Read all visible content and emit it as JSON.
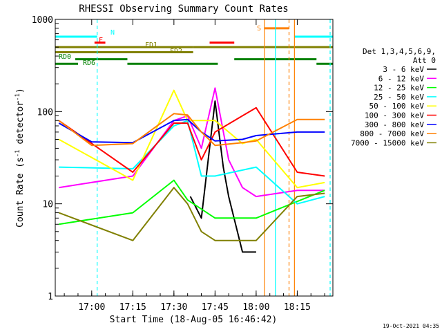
{
  "chart_data": {
    "type": "line",
    "title": "RHESSI Observing Summary Count Rates",
    "xlabel": "Start Time (18-Aug-05 16:46:42)",
    "ylabel": "Count Rate (s",
    "ylabel_sup1": "-1",
    "ylabel_mid": " detector",
    "ylabel_sup2": "-1",
    "ylabel_end": ")",
    "xlim": [
      16.7783,
      18.4667
    ],
    "ylim": [
      1,
      1000
    ],
    "yscale": "log",
    "x_ticks": [
      {
        "t": 17.0,
        "label": "17:00"
      },
      {
        "t": 17.25,
        "label": "17:15"
      },
      {
        "t": 17.5,
        "label": "17:30"
      },
      {
        "t": 17.75,
        "label": "17:45"
      },
      {
        "t": 18.0,
        "label": "18:00"
      },
      {
        "t": 18.25,
        "label": "18:15"
      }
    ],
    "y_ticks": [
      {
        "v": 1,
        "label": "1"
      },
      {
        "v": 10,
        "label": "10"
      },
      {
        "v": 100,
        "label": "100"
      },
      {
        "v": 1000,
        "label": "1000"
      }
    ],
    "legend_header": [
      "Det 1,3,4,5,6,9,",
      "Att 0"
    ],
    "timestamp": "19-Oct-2021 04:35",
    "series": [
      {
        "name": "3 - 6 keV",
        "color": "#000000",
        "points": [
          [
            17.6,
            12
          ],
          [
            17.667,
            7
          ],
          [
            17.75,
            130
          ],
          [
            17.8,
            25
          ],
          [
            17.833,
            12
          ],
          [
            17.917,
            3
          ],
          [
            18.0,
            3
          ]
        ]
      },
      {
        "name": "6 - 12 keV",
        "color": "#ff00ff",
        "points": [
          [
            16.8,
            15
          ],
          [
            17.25,
            20
          ],
          [
            17.5,
            80
          ],
          [
            17.583,
            90
          ],
          [
            17.667,
            40
          ],
          [
            17.75,
            180
          ],
          [
            17.833,
            30
          ],
          [
            17.917,
            15
          ],
          [
            18.0,
            12
          ],
          [
            18.25,
            14
          ],
          [
            18.417,
            14
          ]
        ]
      },
      {
        "name": "12 - 25 keV",
        "color": "#00ff00",
        "points": [
          [
            16.8,
            6
          ],
          [
            17.25,
            8
          ],
          [
            17.5,
            18
          ],
          [
            17.583,
            11
          ],
          [
            17.75,
            7
          ],
          [
            18.0,
            7
          ],
          [
            18.417,
            14
          ]
        ]
      },
      {
        "name": "25 - 50 keV",
        "color": "#00ffff",
        "points": [
          [
            16.8,
            25
          ],
          [
            17.25,
            24
          ],
          [
            17.5,
            70
          ],
          [
            17.583,
            80
          ],
          [
            17.667,
            20
          ],
          [
            17.75,
            20
          ],
          [
            18.0,
            25
          ],
          [
            18.25,
            10
          ],
          [
            18.417,
            12
          ]
        ]
      },
      {
        "name": "50 - 100 keV",
        "color": "#ffff00",
        "points": [
          [
            16.8,
            50
          ],
          [
            17.25,
            18
          ],
          [
            17.5,
            170
          ],
          [
            17.583,
            80
          ],
          [
            17.667,
            80
          ],
          [
            17.75,
            80
          ],
          [
            17.917,
            45
          ],
          [
            18.0,
            50
          ],
          [
            18.25,
            15
          ],
          [
            18.417,
            17
          ]
        ]
      },
      {
        "name": "100 - 300 keV",
        "color": "#ff0000",
        "points": [
          [
            16.8,
            80
          ],
          [
            17.25,
            22
          ],
          [
            17.5,
            75
          ],
          [
            17.583,
            75
          ],
          [
            17.667,
            30
          ],
          [
            17.75,
            60
          ],
          [
            17.917,
            90
          ],
          [
            18.0,
            110
          ],
          [
            18.25,
            22
          ],
          [
            18.417,
            20
          ]
        ]
      },
      {
        "name": "300 - 800 keV",
        "color": "#0000ff",
        "points": [
          [
            16.8,
            75
          ],
          [
            17.0,
            47
          ],
          [
            17.25,
            46
          ],
          [
            17.5,
            80
          ],
          [
            17.583,
            82
          ],
          [
            17.667,
            60
          ],
          [
            17.75,
            48
          ],
          [
            17.917,
            50
          ],
          [
            18.0,
            55
          ],
          [
            18.25,
            60
          ],
          [
            18.417,
            60
          ]
        ]
      },
      {
        "name": "800 - 7000 keV",
        "color": "#ff8000",
        "points": [
          [
            16.8,
            80
          ],
          [
            17.0,
            43
          ],
          [
            17.25,
            45
          ],
          [
            17.5,
            95
          ],
          [
            17.583,
            92
          ],
          [
            17.667,
            60
          ],
          [
            17.75,
            43
          ],
          [
            17.917,
            46
          ],
          [
            18.0,
            48
          ],
          [
            18.25,
            82
          ],
          [
            18.417,
            82
          ]
        ]
      },
      {
        "name": "7000 - 15000 keV",
        "color": "#808000",
        "points": [
          [
            16.8,
            8
          ],
          [
            17.25,
            4
          ],
          [
            17.5,
            15
          ],
          [
            17.583,
            10
          ],
          [
            17.667,
            5
          ],
          [
            17.75,
            4
          ],
          [
            17.917,
            4
          ],
          [
            18.0,
            4
          ],
          [
            18.25,
            12
          ],
          [
            18.417,
            13
          ]
        ]
      }
    ],
    "annotations": [
      {
        "label": "N",
        "color": "#00ffff"
      },
      {
        "label": "F",
        "color": "#ff0000"
      },
      {
        "label": "FD1",
        "color": "#808000"
      },
      {
        "label": "FD2",
        "color": "#808000"
      },
      {
        "label": "RD0",
        "color": "#008000"
      },
      {
        "label": "RD6",
        "color": "#008000"
      },
      {
        "label": "S",
        "color": "#ff8000"
      }
    ],
    "flag_bars": [
      {
        "color": "#00ffff",
        "spans": [
          [
            16.78,
            17.033
          ],
          [
            18.233,
            18.467
          ]
        ],
        "level": 650
      },
      {
        "color": "#ff0000",
        "spans": [
          [
            17.017,
            17.083
          ],
          [
            17.717,
            17.867
          ]
        ],
        "level": 560
      },
      {
        "color": "#ff8000",
        "spans": [
          [
            18.05,
            18.2
          ]
        ],
        "level": 800
      },
      {
        "color": "#808000",
        "spans": [
          [
            16.78,
            17.617
          ],
          [
            17.617,
            18.467
          ]
        ],
        "level": 500
      },
      {
        "color": "#808000",
        "spans": [
          [
            16.78,
            17.617
          ]
        ],
        "level": 440
      },
      {
        "color": "#008000",
        "spans": [
          [
            16.9,
            17.217
          ],
          [
            17.867,
            18.367
          ]
        ],
        "level": 370
      },
      {
        "color": "#008000",
        "spans": [
          [
            16.78,
            16.917
          ],
          [
            17.217,
            17.767
          ],
          [
            18.367,
            18.467
          ]
        ],
        "level": 330
      }
    ],
    "vlines": [
      {
        "t": 17.033,
        "color": "#00ffff",
        "dashed": true
      },
      {
        "t": 18.05,
        "color": "#ff8000",
        "dashed": false
      },
      {
        "t": 18.117,
        "color": "#00ffff",
        "dashed": false
      },
      {
        "t": 18.2,
        "color": "#ff8000",
        "dashed": true
      },
      {
        "t": 18.233,
        "color": "#ff8000",
        "dashed": false
      },
      {
        "t": 18.45,
        "color": "#00ffff",
        "dashed": true
      }
    ]
  }
}
